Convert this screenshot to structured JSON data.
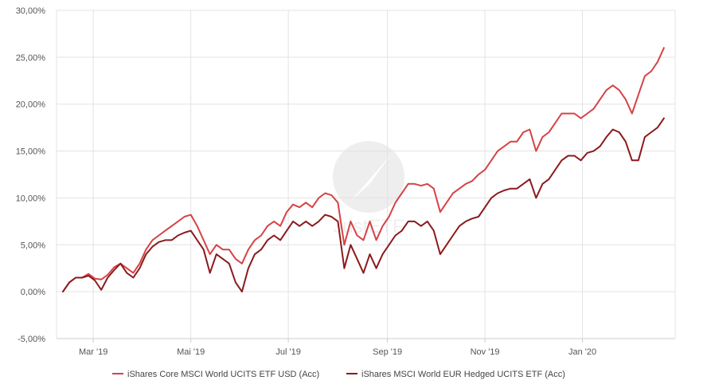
{
  "chart_data": {
    "type": "line",
    "title": "",
    "xlabel": "",
    "ylabel": "",
    "y_unit": "%",
    "ylim": [
      -5,
      30
    ],
    "y_ticks": [
      -5,
      0,
      5,
      10,
      15,
      20,
      25,
      30
    ],
    "y_tick_labels": [
      "-5,00%",
      "0,00%",
      "5,00%",
      "10,00%",
      "15,00%",
      "20,00%",
      "25,00%",
      "30,00%"
    ],
    "xlim": [
      "2019-02-06",
      "2020-02-28"
    ],
    "x_ticks": [
      "2019-03-01",
      "2019-05-01",
      "2019-07-01",
      "2019-09-01",
      "2019-11-01",
      "2020-01-01"
    ],
    "x_tick_labels": [
      "Mar '19",
      "Mai '19",
      "Jul '19",
      "Sep '19",
      "Nov '19",
      "Jan '20"
    ],
    "grid": true,
    "legend_position": "bottom",
    "watermark": "JustETF",
    "series": [
      {
        "name": "iShares Core MSCI World UCITS ETF USD (Acc)",
        "color": "#d64245",
        "points": [
          [
            "2019-02-10",
            0.0
          ],
          [
            "2019-02-14",
            1.0
          ],
          [
            "2019-02-18",
            1.5
          ],
          [
            "2019-02-22",
            1.5
          ],
          [
            "2019-02-26",
            1.9
          ],
          [
            "2019-03-02",
            1.4
          ],
          [
            "2019-03-06",
            1.3
          ],
          [
            "2019-03-10",
            1.8
          ],
          [
            "2019-03-14",
            2.6
          ],
          [
            "2019-03-18",
            3.0
          ],
          [
            "2019-03-22",
            2.5
          ],
          [
            "2019-03-26",
            2.0
          ],
          [
            "2019-03-30",
            3.0
          ],
          [
            "2019-04-03",
            4.5
          ],
          [
            "2019-04-07",
            5.5
          ],
          [
            "2019-04-11",
            6.0
          ],
          [
            "2019-04-15",
            6.5
          ],
          [
            "2019-04-19",
            7.0
          ],
          [
            "2019-04-23",
            7.5
          ],
          [
            "2019-04-27",
            8.0
          ],
          [
            "2019-05-01",
            8.2
          ],
          [
            "2019-05-05",
            7.0
          ],
          [
            "2019-05-09",
            5.5
          ],
          [
            "2019-05-13",
            4.0
          ],
          [
            "2019-05-17",
            5.0
          ],
          [
            "2019-05-21",
            4.5
          ],
          [
            "2019-05-25",
            4.5
          ],
          [
            "2019-05-29",
            3.5
          ],
          [
            "2019-06-02",
            3.0
          ],
          [
            "2019-06-06",
            4.5
          ],
          [
            "2019-06-10",
            5.5
          ],
          [
            "2019-06-14",
            6.0
          ],
          [
            "2019-06-18",
            7.0
          ],
          [
            "2019-06-22",
            7.5
          ],
          [
            "2019-06-26",
            7.0
          ],
          [
            "2019-06-30",
            8.5
          ],
          [
            "2019-07-04",
            9.3
          ],
          [
            "2019-07-08",
            9.0
          ],
          [
            "2019-07-12",
            9.5
          ],
          [
            "2019-07-16",
            9.0
          ],
          [
            "2019-07-20",
            10.0
          ],
          [
            "2019-07-24",
            10.5
          ],
          [
            "2019-07-28",
            10.3
          ],
          [
            "2019-08-01",
            9.5
          ],
          [
            "2019-08-05",
            5.0
          ],
          [
            "2019-08-09",
            7.5
          ],
          [
            "2019-08-13",
            6.0
          ],
          [
            "2019-08-17",
            5.5
          ],
          [
            "2019-08-21",
            7.5
          ],
          [
            "2019-08-25",
            5.5
          ],
          [
            "2019-08-29",
            7.0
          ],
          [
            "2019-09-02",
            8.0
          ],
          [
            "2019-09-06",
            9.5
          ],
          [
            "2019-09-10",
            10.5
          ],
          [
            "2019-09-14",
            11.5
          ],
          [
            "2019-09-18",
            11.5
          ],
          [
            "2019-09-22",
            11.3
          ],
          [
            "2019-09-26",
            11.5
          ],
          [
            "2019-09-30",
            11.0
          ],
          [
            "2019-10-04",
            8.5
          ],
          [
            "2019-10-08",
            9.5
          ],
          [
            "2019-10-12",
            10.5
          ],
          [
            "2019-10-16",
            11.0
          ],
          [
            "2019-10-20",
            11.5
          ],
          [
            "2019-10-24",
            11.8
          ],
          [
            "2019-10-28",
            12.5
          ],
          [
            "2019-11-01",
            13.0
          ],
          [
            "2019-11-05",
            14.0
          ],
          [
            "2019-11-09",
            15.0
          ],
          [
            "2019-11-13",
            15.5
          ],
          [
            "2019-11-17",
            16.0
          ],
          [
            "2019-11-21",
            16.0
          ],
          [
            "2019-11-25",
            17.0
          ],
          [
            "2019-11-29",
            17.3
          ],
          [
            "2019-12-03",
            15.0
          ],
          [
            "2019-12-07",
            16.5
          ],
          [
            "2019-12-11",
            17.0
          ],
          [
            "2019-12-15",
            18.0
          ],
          [
            "2019-12-19",
            19.0
          ],
          [
            "2019-12-23",
            19.0
          ],
          [
            "2019-12-27",
            19.0
          ],
          [
            "2019-12-31",
            18.5
          ],
          [
            "2020-01-04",
            19.0
          ],
          [
            "2020-01-08",
            19.5
          ],
          [
            "2020-01-12",
            20.5
          ],
          [
            "2020-01-16",
            21.5
          ],
          [
            "2020-01-20",
            22.0
          ],
          [
            "2020-01-24",
            21.5
          ],
          [
            "2020-01-28",
            20.5
          ],
          [
            "2020-02-01",
            19.0
          ],
          [
            "2020-02-05",
            21.0
          ],
          [
            "2020-02-09",
            23.0
          ],
          [
            "2020-02-13",
            23.5
          ],
          [
            "2020-02-17",
            24.5
          ],
          [
            "2020-02-21",
            26.0
          ]
        ]
      },
      {
        "name": "iShares MSCI World EUR Hedged UCITS ETF (Acc)",
        "color": "#8b1a1d",
        "points": [
          [
            "2019-02-10",
            0.0
          ],
          [
            "2019-02-14",
            1.0
          ],
          [
            "2019-02-18",
            1.5
          ],
          [
            "2019-02-22",
            1.5
          ],
          [
            "2019-02-26",
            1.7
          ],
          [
            "2019-03-02",
            1.2
          ],
          [
            "2019-03-06",
            0.2
          ],
          [
            "2019-03-10",
            1.5
          ],
          [
            "2019-03-14",
            2.3
          ],
          [
            "2019-03-18",
            3.0
          ],
          [
            "2019-03-22",
            2.0
          ],
          [
            "2019-03-26",
            1.5
          ],
          [
            "2019-03-30",
            2.5
          ],
          [
            "2019-04-03",
            4.0
          ],
          [
            "2019-04-07",
            4.8
          ],
          [
            "2019-04-11",
            5.3
          ],
          [
            "2019-04-15",
            5.5
          ],
          [
            "2019-04-19",
            5.5
          ],
          [
            "2019-04-23",
            6.0
          ],
          [
            "2019-04-27",
            6.3
          ],
          [
            "2019-05-01",
            6.5
          ],
          [
            "2019-05-05",
            5.5
          ],
          [
            "2019-05-09",
            4.5
          ],
          [
            "2019-05-13",
            2.0
          ],
          [
            "2019-05-17",
            4.0
          ],
          [
            "2019-05-21",
            3.5
          ],
          [
            "2019-05-25",
            3.0
          ],
          [
            "2019-05-29",
            1.0
          ],
          [
            "2019-06-02",
            0.0
          ],
          [
            "2019-06-06",
            2.5
          ],
          [
            "2019-06-10",
            4.0
          ],
          [
            "2019-06-14",
            4.5
          ],
          [
            "2019-06-18",
            5.5
          ],
          [
            "2019-06-22",
            6.0
          ],
          [
            "2019-06-26",
            5.5
          ],
          [
            "2019-06-30",
            6.5
          ],
          [
            "2019-07-04",
            7.5
          ],
          [
            "2019-07-08",
            7.0
          ],
          [
            "2019-07-12",
            7.5
          ],
          [
            "2019-07-16",
            7.0
          ],
          [
            "2019-07-20",
            7.5
          ],
          [
            "2019-07-24",
            8.2
          ],
          [
            "2019-07-28",
            8.0
          ],
          [
            "2019-08-01",
            7.5
          ],
          [
            "2019-08-05",
            2.5
          ],
          [
            "2019-08-09",
            5.0
          ],
          [
            "2019-08-13",
            3.5
          ],
          [
            "2019-08-17",
            2.0
          ],
          [
            "2019-08-21",
            4.0
          ],
          [
            "2019-08-25",
            2.5
          ],
          [
            "2019-08-29",
            4.0
          ],
          [
            "2019-09-02",
            5.0
          ],
          [
            "2019-09-06",
            6.0
          ],
          [
            "2019-09-10",
            6.5
          ],
          [
            "2019-09-14",
            7.5
          ],
          [
            "2019-09-18",
            7.5
          ],
          [
            "2019-09-22",
            7.0
          ],
          [
            "2019-09-26",
            7.5
          ],
          [
            "2019-09-30",
            6.5
          ],
          [
            "2019-10-04",
            4.0
          ],
          [
            "2019-10-08",
            5.0
          ],
          [
            "2019-10-12",
            6.0
          ],
          [
            "2019-10-16",
            7.0
          ],
          [
            "2019-10-20",
            7.5
          ],
          [
            "2019-10-24",
            7.8
          ],
          [
            "2019-10-28",
            8.0
          ],
          [
            "2019-11-01",
            9.0
          ],
          [
            "2019-11-05",
            10.0
          ],
          [
            "2019-11-09",
            10.5
          ],
          [
            "2019-11-13",
            10.8
          ],
          [
            "2019-11-17",
            11.0
          ],
          [
            "2019-11-21",
            11.0
          ],
          [
            "2019-11-25",
            11.5
          ],
          [
            "2019-11-29",
            12.0
          ],
          [
            "2019-12-03",
            10.0
          ],
          [
            "2019-12-07",
            11.5
          ],
          [
            "2019-12-11",
            12.0
          ],
          [
            "2019-12-15",
            13.0
          ],
          [
            "2019-12-19",
            14.0
          ],
          [
            "2019-12-23",
            14.5
          ],
          [
            "2019-12-27",
            14.5
          ],
          [
            "2019-12-31",
            14.0
          ],
          [
            "2020-01-04",
            14.8
          ],
          [
            "2020-01-08",
            15.0
          ],
          [
            "2020-01-12",
            15.5
          ],
          [
            "2020-01-16",
            16.5
          ],
          [
            "2020-01-20",
            17.3
          ],
          [
            "2020-01-24",
            17.0
          ],
          [
            "2020-01-28",
            16.0
          ],
          [
            "2020-02-01",
            14.0
          ],
          [
            "2020-02-05",
            14.0
          ],
          [
            "2020-02-09",
            16.5
          ],
          [
            "2020-02-13",
            17.0
          ],
          [
            "2020-02-17",
            17.5
          ],
          [
            "2020-02-21",
            18.5
          ]
        ]
      }
    ]
  }
}
